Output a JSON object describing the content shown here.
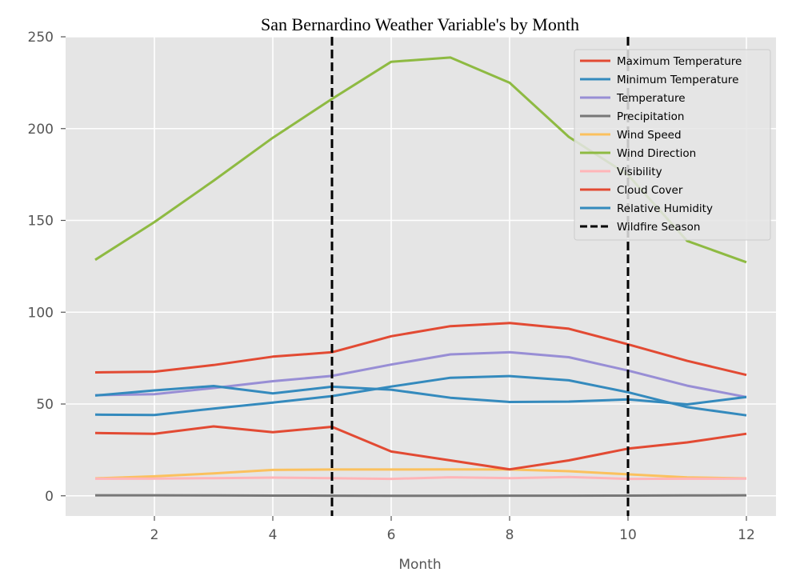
{
  "chart_data": {
    "type": "line",
    "title": "San Bernardino Weather Variable's by Month",
    "xlabel": "Month",
    "ylabel": "",
    "xlim": [
      0.5,
      12.5
    ],
    "ylim": [
      -11,
      250
    ],
    "xticks": [
      2,
      4,
      6,
      8,
      10,
      12
    ],
    "yticks": [
      0,
      50,
      100,
      150,
      200,
      250
    ],
    "grid": true,
    "legend_position": "top-right",
    "x": [
      1,
      2,
      3,
      4,
      5,
      6,
      7,
      8,
      9,
      10,
      11,
      12
    ],
    "series": [
      {
        "name": "Maximum Temperature",
        "color": "#E24A33",
        "values": [
          67.2,
          67.6,
          71.2,
          75.8,
          78.2,
          86.9,
          92.4,
          94.1,
          91.0,
          82.5,
          73.5,
          65.8
        ]
      },
      {
        "name": "Minimum Temperature",
        "color": "#348ABD",
        "values": [
          44.2,
          44.0,
          47.5,
          50.8,
          54.3,
          59.5,
          64.3,
          65.2,
          62.9,
          56.4,
          48.3,
          43.8
        ]
      },
      {
        "name": "Temperature",
        "color": "#988ED5",
        "values": [
          54.8,
          55.3,
          58.7,
          62.4,
          65.3,
          71.5,
          77.0,
          78.2,
          75.5,
          68.2,
          60.0,
          53.8
        ]
      },
      {
        "name": "Precipitation",
        "color": "#777777",
        "values": [
          0.3,
          0.3,
          0.2,
          0.1,
          0.05,
          0.0,
          0.02,
          0.05,
          0.05,
          0.1,
          0.2,
          0.3
        ]
      },
      {
        "name": "Wind Speed",
        "color": "#FBC15E",
        "values": [
          9.5,
          10.6,
          12.2,
          14.1,
          14.3,
          14.3,
          14.4,
          14.3,
          13.4,
          11.7,
          10.0,
          9.5
        ]
      },
      {
        "name": "Wind Direction",
        "color": "#8EBA42",
        "values": [
          128.5,
          149.1,
          171.6,
          195.0,
          216.2,
          236.4,
          238.7,
          225.0,
          195.5,
          174.8,
          138.8,
          127.2
        ]
      },
      {
        "name": "Visibility",
        "color": "#FFB5B8",
        "values": [
          9.3,
          9.4,
          9.6,
          9.9,
          9.6,
          9.2,
          10.1,
          9.6,
          10.2,
          9.2,
          9.3,
          9.4
        ]
      },
      {
        "name": "Cloud Cover",
        "color": "#E24A33",
        "values": [
          34.2,
          33.8,
          37.8,
          34.6,
          37.6,
          24.1,
          19.3,
          14.4,
          19.3,
          25.7,
          29.1,
          33.8
        ]
      },
      {
        "name": "Relative Humidity",
        "color": "#348ABD",
        "values": [
          54.6,
          57.4,
          59.8,
          55.8,
          59.4,
          57.8,
          53.4,
          51.1,
          51.3,
          52.5,
          49.8,
          53.8
        ]
      }
    ],
    "vlines": [
      {
        "name": "Wildfire Season",
        "color": "#000000",
        "style": "dashed",
        "x": [
          5,
          10
        ]
      }
    ]
  }
}
